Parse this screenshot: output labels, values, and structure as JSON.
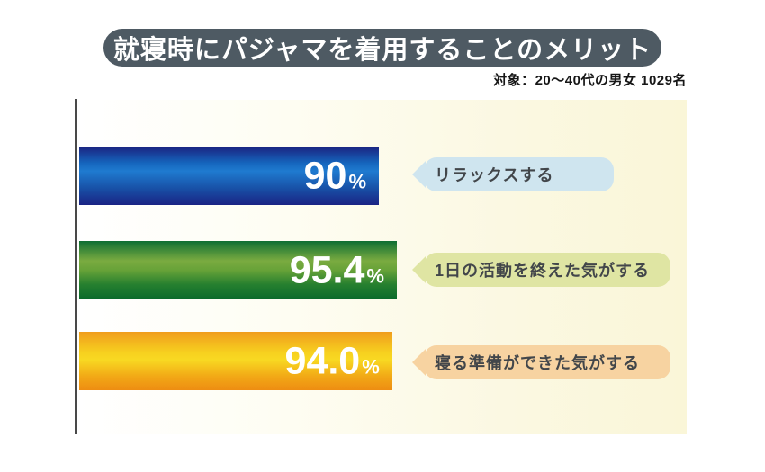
{
  "header": {
    "title": "就寝時にパジャマを着用することのメリット",
    "subtitle": "対象：20〜40代の男女 1029名"
  },
  "chart_data": {
    "type": "bar",
    "orientation": "horizontal",
    "title": "就寝時にパジャマを着用することのメリット",
    "subtitle": "対象：20〜40代の男女 1029名",
    "sample_size": "1029名",
    "categories": [
      "リラックスする",
      "1日の活動を終えた気がする",
      "寝る準備ができた気がする"
    ],
    "values": [
      90,
      95.4,
      94.0
    ],
    "value_labels": [
      "90",
      "95.4",
      "94.0"
    ],
    "unit": "%",
    "xlim": [
      0,
      100
    ],
    "grid": false,
    "legend": false,
    "bar_colors": [
      "#1a6fc4",
      "#4f9733",
      "#f4b51a"
    ],
    "callout_colors": [
      "#cfe5ef",
      "#dfe5a3",
      "#f7d3a1"
    ]
  },
  "bars": [
    {
      "value_text": "90",
      "unit": "%",
      "label": "リラックスする"
    },
    {
      "value_text": "95.4",
      "unit": "%",
      "label": "1日の活動を終えた気がする"
    },
    {
      "value_text": "94.0",
      "unit": "%",
      "label": "寝る準備ができた気がする"
    }
  ],
  "colors": {
    "title_pill_bg": "#4e5a63",
    "title_text": "#ffffff",
    "panel_cream": "#faf6d8",
    "axis_line": "#494949",
    "bar_value_text": "#ffffff",
    "bubble_text": "#42464a"
  }
}
